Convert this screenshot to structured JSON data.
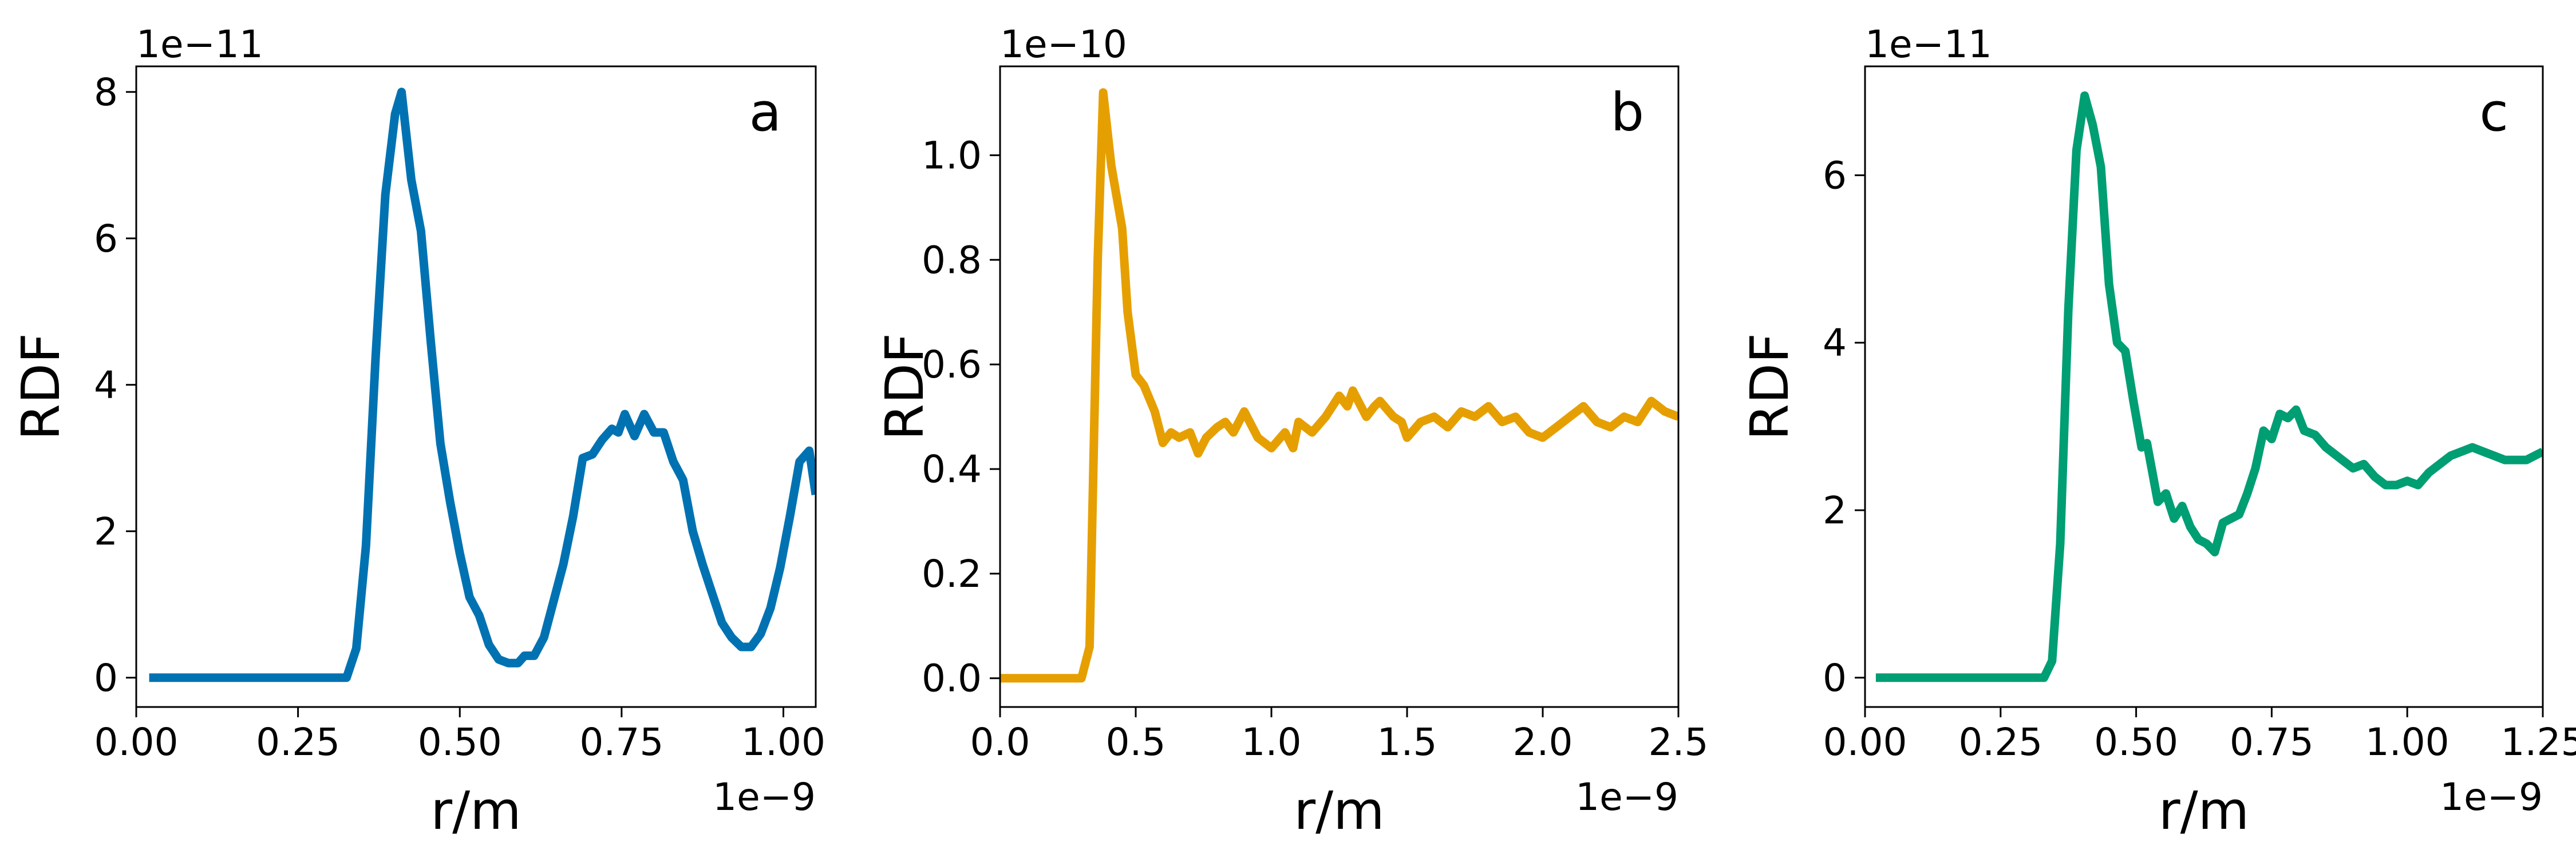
{
  "chart_data": [
    {
      "type": "line",
      "panel_label": "a",
      "xlabel": "r/m",
      "ylabel": "RDF",
      "x_offset_text": "1e−9",
      "y_offset_text": "1e−11",
      "xlim": [
        0.0,
        1.05
      ],
      "ylim": [
        -0.4,
        8.35
      ],
      "xticks": [
        0.0,
        0.25,
        0.5,
        0.75,
        1.0
      ],
      "xtick_labels": [
        "0.00",
        "0.25",
        "0.50",
        "0.75",
        "1.00"
      ],
      "yticks": [
        0,
        2,
        4,
        6,
        8
      ],
      "ytick_labels": [
        "0",
        "2",
        "4",
        "6",
        "8"
      ],
      "grid": false,
      "color": "#0072B2",
      "x": [
        0.02,
        0.05,
        0.1,
        0.15,
        0.2,
        0.25,
        0.3,
        0.325,
        0.34,
        0.355,
        0.37,
        0.385,
        0.4,
        0.41,
        0.425,
        0.44,
        0.455,
        0.47,
        0.485,
        0.5,
        0.515,
        0.53,
        0.545,
        0.56,
        0.575,
        0.59,
        0.6,
        0.615,
        0.63,
        0.645,
        0.66,
        0.675,
        0.69,
        0.705,
        0.72,
        0.735,
        0.745,
        0.755,
        0.77,
        0.785,
        0.8,
        0.815,
        0.83,
        0.845,
        0.86,
        0.875,
        0.89,
        0.905,
        0.92,
        0.935,
        0.95,
        0.965,
        0.98,
        0.995,
        1.01,
        1.025,
        1.04,
        1.05
      ],
      "y": [
        0,
        0,
        0,
        0,
        0,
        0,
        0,
        0,
        0.4,
        1.8,
        4.4,
        6.6,
        7.7,
        8.0,
        6.8,
        6.1,
        4.6,
        3.2,
        2.4,
        1.7,
        1.1,
        0.85,
        0.45,
        0.25,
        0.2,
        0.2,
        0.3,
        0.3,
        0.55,
        1.05,
        1.55,
        2.2,
        3.0,
        3.05,
        3.25,
        3.4,
        3.35,
        3.6,
        3.3,
        3.6,
        3.35,
        3.35,
        2.95,
        2.7,
        2.0,
        1.55,
        1.15,
        0.75,
        0.55,
        0.42,
        0.42,
        0.6,
        0.95,
        1.5,
        2.2,
        2.95,
        3.1,
        2.5
      ]
    },
    {
      "type": "line",
      "panel_label": "b",
      "xlabel": "r/m",
      "ylabel": "RDF",
      "x_offset_text": "1e−9",
      "y_offset_text": "1e−10",
      "xlim": [
        0.0,
        2.5
      ],
      "ylim": [
        -0.055,
        1.17
      ],
      "xticks": [
        0.0,
        0.5,
        1.0,
        1.5,
        2.0,
        2.5
      ],
      "xtick_labels": [
        "0.0",
        "0.5",
        "1.0",
        "1.5",
        "2.0",
        "2.5"
      ],
      "yticks": [
        0.0,
        0.2,
        0.4,
        0.6,
        0.8,
        1.0
      ],
      "ytick_labels": [
        "0.0",
        "0.2",
        "0.4",
        "0.6",
        "0.8",
        "1.0"
      ],
      "grid": false,
      "color": "#E69F00",
      "x": [
        0.0,
        0.1,
        0.2,
        0.3,
        0.33,
        0.36,
        0.38,
        0.41,
        0.45,
        0.47,
        0.5,
        0.53,
        0.57,
        0.6,
        0.63,
        0.66,
        0.7,
        0.73,
        0.76,
        0.8,
        0.83,
        0.86,
        0.9,
        0.95,
        1.0,
        1.05,
        1.08,
        1.1,
        1.15,
        1.2,
        1.25,
        1.28,
        1.3,
        1.35,
        1.38,
        1.4,
        1.45,
        1.48,
        1.5,
        1.55,
        1.6,
        1.65,
        1.7,
        1.75,
        1.8,
        1.85,
        1.9,
        1.95,
        2.0,
        2.05,
        2.1,
        2.15,
        2.2,
        2.25,
        2.3,
        2.35,
        2.4,
        2.45,
        2.5
      ],
      "y": [
        0.0,
        0.0,
        0.0,
        0.0,
        0.06,
        0.8,
        1.12,
        0.98,
        0.86,
        0.7,
        0.58,
        0.56,
        0.51,
        0.45,
        0.47,
        0.46,
        0.47,
        0.43,
        0.46,
        0.48,
        0.49,
        0.47,
        0.51,
        0.46,
        0.44,
        0.47,
        0.44,
        0.49,
        0.47,
        0.5,
        0.54,
        0.52,
        0.55,
        0.5,
        0.52,
        0.53,
        0.5,
        0.49,
        0.46,
        0.49,
        0.5,
        0.48,
        0.51,
        0.5,
        0.52,
        0.49,
        0.5,
        0.47,
        0.46,
        0.48,
        0.5,
        0.52,
        0.49,
        0.48,
        0.5,
        0.49,
        0.53,
        0.51,
        0.5
      ]
    },
    {
      "type": "line",
      "panel_label": "c",
      "xlabel": "r/m",
      "ylabel": "RDF",
      "x_offset_text": "1e−9",
      "y_offset_text": "1e−11",
      "xlim": [
        0.0,
        1.25
      ],
      "ylim": [
        -0.35,
        7.3
      ],
      "xticks": [
        0.0,
        0.25,
        0.5,
        0.75,
        1.0,
        1.25
      ],
      "xtick_labels": [
        "0.00",
        "0.25",
        "0.50",
        "0.75",
        "1.00",
        "1.25"
      ],
      "yticks": [
        0,
        2,
        4,
        6
      ],
      "ytick_labels": [
        "0",
        "2",
        "4",
        "6"
      ],
      "grid": false,
      "color": "#009E73",
      "x": [
        0.02,
        0.1,
        0.2,
        0.3,
        0.33,
        0.345,
        0.36,
        0.375,
        0.39,
        0.405,
        0.42,
        0.435,
        0.45,
        0.465,
        0.48,
        0.495,
        0.51,
        0.52,
        0.54,
        0.555,
        0.57,
        0.585,
        0.6,
        0.615,
        0.63,
        0.645,
        0.66,
        0.675,
        0.69,
        0.705,
        0.72,
        0.735,
        0.75,
        0.765,
        0.78,
        0.795,
        0.81,
        0.83,
        0.85,
        0.87,
        0.89,
        0.9,
        0.92,
        0.94,
        0.96,
        0.98,
        1.0,
        1.02,
        1.04,
        1.06,
        1.08,
        1.1,
        1.12,
        1.14,
        1.16,
        1.18,
        1.2,
        1.22,
        1.25
      ],
      "y": [
        0,
        0,
        0,
        0,
        0,
        0.2,
        1.6,
        4.4,
        6.3,
        6.95,
        6.6,
        6.1,
        4.7,
        4.0,
        3.9,
        3.3,
        2.75,
        2.8,
        2.1,
        2.2,
        1.9,
        2.05,
        1.8,
        1.65,
        1.6,
        1.5,
        1.85,
        1.9,
        1.95,
        2.2,
        2.5,
        2.95,
        2.85,
        3.15,
        3.1,
        3.2,
        2.95,
        2.9,
        2.75,
        2.65,
        2.55,
        2.5,
        2.55,
        2.4,
        2.3,
        2.3,
        2.35,
        2.3,
        2.45,
        2.55,
        2.65,
        2.7,
        2.75,
        2.7,
        2.65,
        2.6,
        2.6,
        2.6,
        2.7
      ]
    }
  ]
}
